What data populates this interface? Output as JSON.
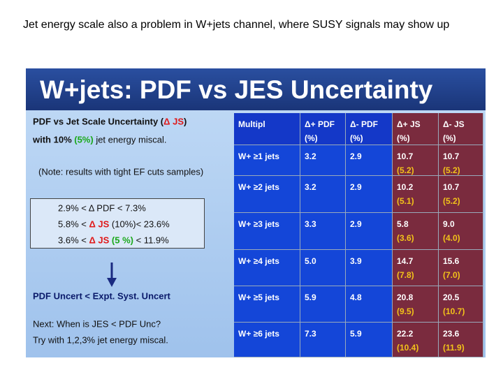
{
  "heading": "Jet energy scale also a problem in W+jets channel, where SUSY signals may show up",
  "slide": {
    "title": "W+jets: PDF vs JES Uncertainty",
    "left": {
      "intro": [
        "PDF vs Jet Scale Uncertainty (",
        "Δ JS",
        ")"
      ],
      "miscal": [
        "with 10% ",
        "(5%)",
        " jet energy miscal."
      ],
      "note": "(Note: results with tight EF cuts samples)",
      "ranges": [
        [
          "2.9% < Δ PDF < 7.3%"
        ],
        [
          "5.8% < ",
          "Δ JS",
          " (10%)< 23.6%"
        ],
        [
          "3.6% < ",
          "Δ JS",
          " (5 %)",
          " < 11.9%"
        ]
      ],
      "conclusion": "PDF Uncert < Expt. Syst. Uncert",
      "next": [
        "Next:  When is JES < PDF Unc?",
        "Try with 1,2,3% jet energy miscal."
      ]
    },
    "table": {
      "header": [
        [
          "Multipl"
        ],
        [
          "Δ+ PDF",
          "(%)"
        ],
        [
          "Δ- PDF",
          "(%)"
        ],
        [
          "Δ+ JS",
          "(%)"
        ],
        [
          "Δ- JS",
          "(%)"
        ]
      ],
      "rows": [
        [
          [
            "W+ ≥1 jets"
          ],
          [
            "3.2"
          ],
          [
            "2.9"
          ],
          [
            "10.7",
            "(5.2)"
          ],
          [
            "10.7",
            "(5.2)"
          ]
        ],
        [
          [
            "W+ ≥2 jets"
          ],
          [
            "3.2"
          ],
          [
            "2.9"
          ],
          [
            "10.2",
            "(5.1)"
          ],
          [
            "10.7",
            "(5.2)"
          ]
        ],
        [
          [
            "W+ ≥3 jets"
          ],
          [
            "3.3"
          ],
          [
            "2.9"
          ],
          [
            "5.8",
            "(3.6)"
          ],
          [
            "9.0",
            "(4.0)"
          ]
        ],
        [
          [
            "W+ ≥4 jets"
          ],
          [
            "5.0"
          ],
          [
            "3.9"
          ],
          [
            "14.7",
            "(7.8)"
          ],
          [
            "15.6",
            "(7.0)"
          ]
        ],
        [
          [
            "W+ ≥5 jets"
          ],
          [
            "5.9"
          ],
          [
            "4.8"
          ],
          [
            "20.8",
            "(9.5)"
          ],
          [
            "20.5",
            "(10.7)"
          ]
        ],
        [
          [
            "W+ ≥6 jets"
          ],
          [
            "7.3"
          ],
          [
            "5.9"
          ],
          [
            "22.2",
            "(10.4)"
          ],
          [
            "23.6",
            "(11.9)"
          ]
        ]
      ]
    }
  }
}
